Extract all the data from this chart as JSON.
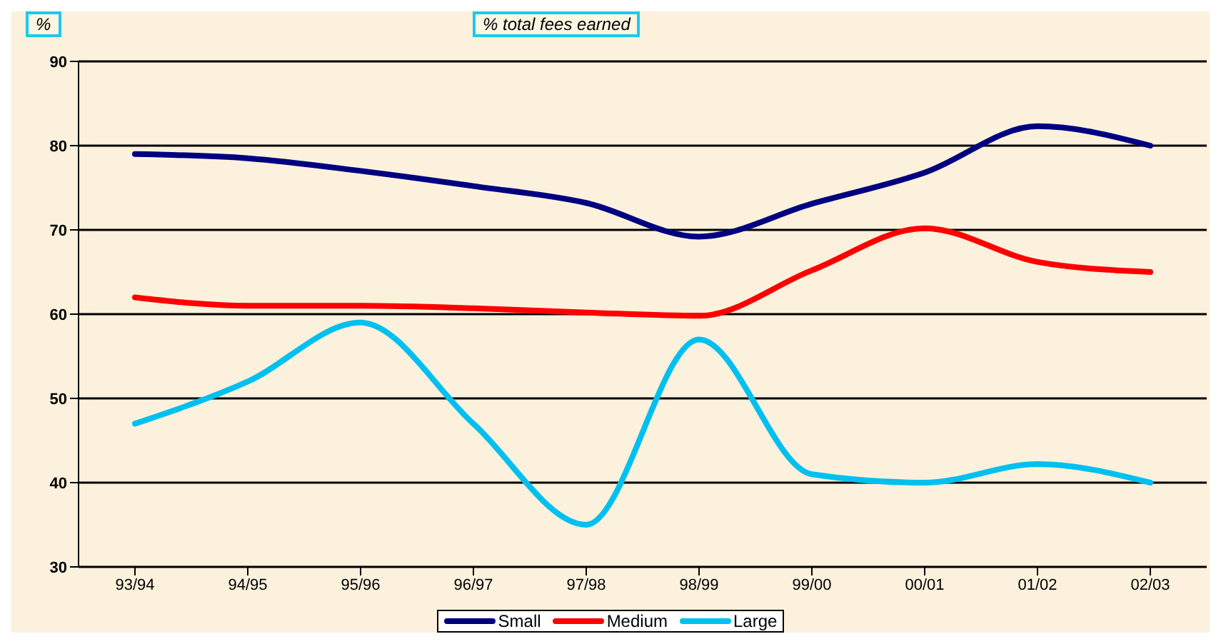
{
  "chart_data": {
    "type": "line",
    "title": "% total fees earned",
    "ylabel": "%",
    "categories": [
      "93/94",
      "94/95",
      "95/96",
      "96/97",
      "97/98",
      "98/99",
      "99/00",
      "00/01",
      "01/02",
      "02/03"
    ],
    "ylim": [
      30,
      90
    ],
    "yticks": [
      30,
      40,
      50,
      60,
      70,
      80,
      90
    ],
    "grid": "y",
    "legend": "bottom",
    "marker": "none",
    "line_style": "solid",
    "series": [
      {
        "name": "Small",
        "color": "#000080",
        "values": [
          79,
          78.5,
          77,
          75.2,
          73.2,
          69.2,
          73.1,
          76.8,
          82.3,
          80
        ]
      },
      {
        "name": "Medium",
        "color": "#ff0000",
        "values": [
          62,
          61,
          61,
          60.7,
          60.2,
          59.8,
          65.2,
          70.2,
          66.2,
          65
        ]
      },
      {
        "name": "Large",
        "color": "#00c0f0",
        "values": [
          47,
          52,
          59,
          47,
          35,
          57,
          41,
          40,
          42.2,
          40
        ]
      }
    ]
  }
}
